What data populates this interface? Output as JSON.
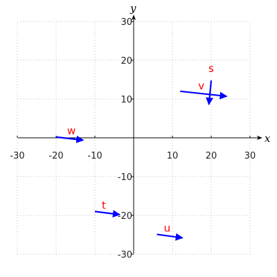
{
  "chart_data": {
    "type": "vector-plot",
    "x_axis_label": "x",
    "y_axis_label": "y",
    "xlim": [
      -30,
      30
    ],
    "ylim": [
      -30,
      30
    ],
    "x_ticks": [
      -30,
      -20,
      -10,
      10,
      20,
      30
    ],
    "y_ticks": [
      -30,
      -20,
      -10,
      10,
      20,
      30
    ],
    "grid_step": 10,
    "grid": true,
    "colors": {
      "vector": "#0000ff",
      "label": "#ff0000",
      "axis": "#000000"
    },
    "vectors": [
      {
        "label": "w",
        "tail": [
          -20,
          0.2
        ],
        "head": [
          -13,
          -0.6
        ]
      },
      {
        "label": "v",
        "tail": [
          12,
          12
        ],
        "head": [
          24,
          10.7
        ]
      },
      {
        "label": "s",
        "tail": [
          20,
          14.8
        ],
        "head": [
          19.4,
          8.6
        ]
      },
      {
        "label": "t",
        "tail": [
          -10,
          -19
        ],
        "head": [
          -3.6,
          -19.8
        ]
      },
      {
        "label": "u",
        "tail": [
          6,
          -24.9
        ],
        "head": [
          12.6,
          -25.8
        ]
      }
    ]
  }
}
